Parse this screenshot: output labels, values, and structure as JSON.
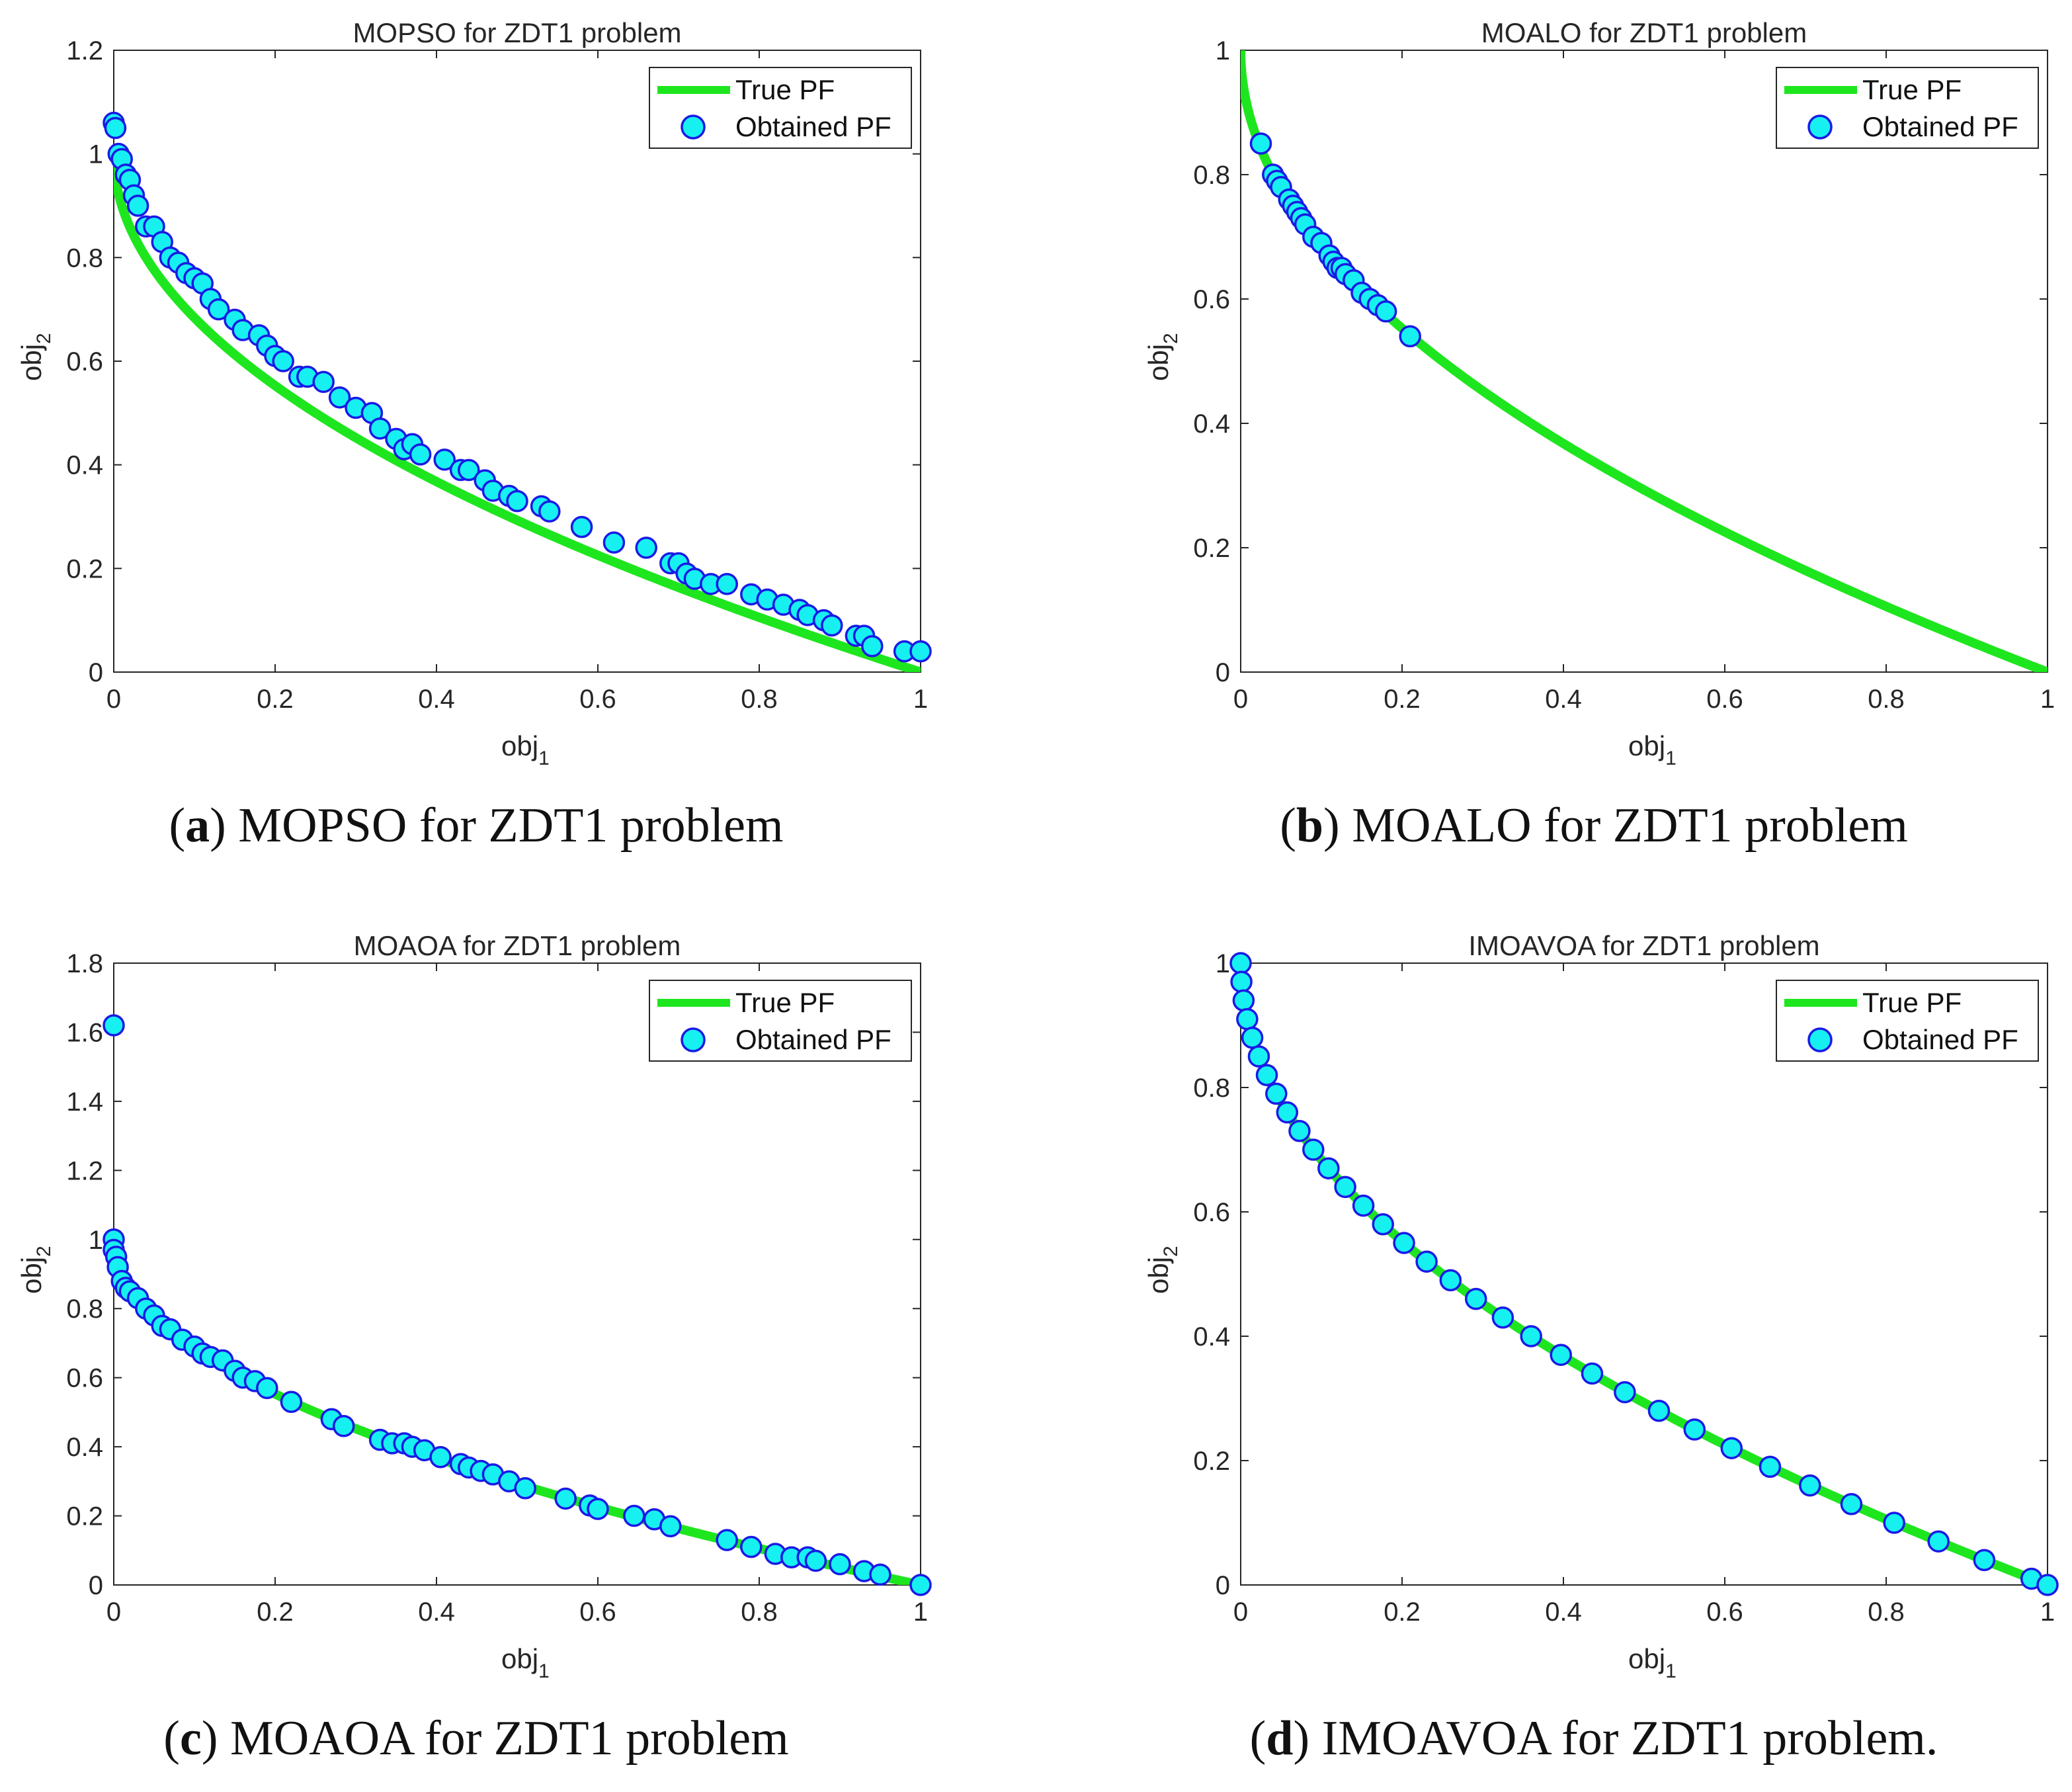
{
  "chart_data": [
    {
      "type": "scatter",
      "panel": "a",
      "title": "MOPSO for ZDT1 problem",
      "caption_label": "a",
      "caption_text": "MOPSO for ZDT1 problem",
      "xlabel": "obj",
      "xlabel_sub": "1",
      "ylabel": "obj",
      "ylabel_sub": "2",
      "xlim": [
        0,
        1
      ],
      "ylim": [
        0,
        1.2
      ],
      "xticks": [
        "0",
        "0.2",
        "0.4",
        "0.6",
        "0.8",
        "1"
      ],
      "yticks": [
        "0",
        "0.2",
        "0.4",
        "0.6",
        "0.8",
        "1",
        "1.2"
      ],
      "legend": {
        "line_label": "True PF",
        "marker_label": "Obtained PF",
        "position": "top-right"
      },
      "true_pf": "f2 = 1 - sqrt(f1)",
      "true_pf_range": [
        0,
        1
      ],
      "series": [
        {
          "name": "Obtained PF",
          "x": [
            0.0,
            0.002,
            0.006,
            0.01,
            0.015,
            0.02,
            0.025,
            0.03,
            0.04,
            0.05,
            0.06,
            0.07,
            0.08,
            0.09,
            0.1,
            0.11,
            0.12,
            0.13,
            0.15,
            0.16,
            0.18,
            0.19,
            0.2,
            0.21,
            0.23,
            0.24,
            0.26,
            0.28,
            0.3,
            0.32,
            0.33,
            0.35,
            0.36,
            0.37,
            0.38,
            0.41,
            0.43,
            0.44,
            0.46,
            0.47,
            0.49,
            0.5,
            0.53,
            0.54,
            0.58,
            0.62,
            0.66,
            0.69,
            0.7,
            0.71,
            0.72,
            0.74,
            0.76,
            0.79,
            0.81,
            0.83,
            0.85,
            0.86,
            0.88,
            0.89,
            0.92,
            0.93,
            0.94,
            0.98,
            1.0
          ],
          "y": [
            1.06,
            1.05,
            1.0,
            0.99,
            0.96,
            0.95,
            0.92,
            0.9,
            0.86,
            0.86,
            0.83,
            0.8,
            0.79,
            0.77,
            0.76,
            0.75,
            0.72,
            0.7,
            0.68,
            0.66,
            0.65,
            0.63,
            0.61,
            0.6,
            0.57,
            0.57,
            0.56,
            0.53,
            0.51,
            0.5,
            0.47,
            0.45,
            0.43,
            0.44,
            0.42,
            0.41,
            0.39,
            0.39,
            0.37,
            0.35,
            0.34,
            0.33,
            0.32,
            0.31,
            0.28,
            0.25,
            0.24,
            0.21,
            0.21,
            0.19,
            0.18,
            0.17,
            0.17,
            0.15,
            0.14,
            0.13,
            0.12,
            0.11,
            0.1,
            0.09,
            0.07,
            0.07,
            0.05,
            0.04,
            0.04
          ]
        }
      ]
    },
    {
      "type": "scatter",
      "panel": "b",
      "title": "MOALO for ZDT1 problem",
      "caption_label": "b",
      "caption_text": "MOALO for ZDT1 problem",
      "xlabel": "obj",
      "xlabel_sub": "1",
      "ylabel": "obj",
      "ylabel_sub": "2",
      "xlim": [
        0,
        1
      ],
      "ylim": [
        0,
        1
      ],
      "xticks": [
        "0",
        "0.2",
        "0.4",
        "0.6",
        "0.8",
        "1"
      ],
      "yticks": [
        "0",
        "0.2",
        "0.4",
        "0.6",
        "0.8",
        "1"
      ],
      "legend": {
        "line_label": "True PF",
        "marker_label": "Obtained PF",
        "position": "top-right"
      },
      "true_pf": "f2 = 1 - sqrt(f1)",
      "true_pf_range": [
        0,
        1
      ],
      "series": [
        {
          "name": "Obtained PF",
          "x": [
            0.025,
            0.04,
            0.045,
            0.05,
            0.06,
            0.065,
            0.07,
            0.075,
            0.08,
            0.09,
            0.1,
            0.11,
            0.115,
            0.12,
            0.125,
            0.13,
            0.14,
            0.15,
            0.16,
            0.17,
            0.18,
            0.21
          ],
          "y": [
            0.85,
            0.8,
            0.79,
            0.78,
            0.76,
            0.75,
            0.74,
            0.73,
            0.72,
            0.7,
            0.69,
            0.67,
            0.66,
            0.65,
            0.65,
            0.64,
            0.63,
            0.61,
            0.6,
            0.59,
            0.58,
            0.54
          ]
        }
      ]
    },
    {
      "type": "scatter",
      "panel": "c",
      "title": "MOAOA for ZDT1 problem",
      "caption_label": "c",
      "caption_text": "MOAOA for ZDT1 problem",
      "xlabel": "obj",
      "xlabel_sub": "1",
      "ylabel": "obj",
      "ylabel_sub": "2",
      "xlim": [
        0,
        1
      ],
      "ylim": [
        0,
        1.8
      ],
      "xticks": [
        "0",
        "0.2",
        "0.4",
        "0.6",
        "0.8",
        "1"
      ],
      "yticks": [
        "0",
        "0.2",
        "0.4",
        "0.6",
        "0.8",
        "1",
        "1.2",
        "1.4",
        "1.6",
        "1.8"
      ],
      "legend": {
        "line_label": "True PF",
        "marker_label": "Obtained PF",
        "position": "top-right"
      },
      "true_pf": "f2 = 1 - sqrt(f1)",
      "true_pf_range": [
        0,
        1
      ],
      "series": [
        {
          "name": "Obtained PF",
          "x": [
            0.0,
            0.0,
            0.0,
            0.003,
            0.005,
            0.01,
            0.015,
            0.02,
            0.03,
            0.04,
            0.05,
            0.06,
            0.07,
            0.085,
            0.1,
            0.11,
            0.12,
            0.135,
            0.15,
            0.16,
            0.175,
            0.19,
            0.22,
            0.27,
            0.285,
            0.33,
            0.345,
            0.36,
            0.37,
            0.385,
            0.405,
            0.43,
            0.44,
            0.455,
            0.47,
            0.49,
            0.51,
            0.56,
            0.59,
            0.6,
            0.645,
            0.67,
            0.69,
            0.76,
            0.79,
            0.82,
            0.84,
            0.86,
            0.87,
            0.9,
            0.93,
            0.95,
            1.0
          ],
          "y": [
            1.62,
            1.0,
            0.97,
            0.95,
            0.92,
            0.88,
            0.86,
            0.85,
            0.83,
            0.8,
            0.78,
            0.75,
            0.74,
            0.71,
            0.69,
            0.67,
            0.66,
            0.65,
            0.62,
            0.6,
            0.59,
            0.57,
            0.53,
            0.48,
            0.46,
            0.42,
            0.41,
            0.41,
            0.4,
            0.39,
            0.37,
            0.35,
            0.34,
            0.33,
            0.32,
            0.3,
            0.28,
            0.25,
            0.23,
            0.22,
            0.2,
            0.19,
            0.17,
            0.13,
            0.11,
            0.09,
            0.08,
            0.08,
            0.07,
            0.06,
            0.04,
            0.03,
            0.0
          ]
        }
      ]
    },
    {
      "type": "scatter",
      "panel": "d",
      "title": "IMOAVOA for ZDT1 problem",
      "caption_label": "d",
      "caption_text": "IMOAVOA for ZDT1 problem.",
      "xlabel": "obj",
      "xlabel_sub": "1",
      "ylabel": "obj",
      "ylabel_sub": "2",
      "xlim": [
        0,
        1
      ],
      "ylim": [
        0,
        1
      ],
      "xticks": [
        "0",
        "0.2",
        "0.4",
        "0.6",
        "0.8",
        "1"
      ],
      "yticks": [
        "0",
        "0.2",
        "0.4",
        "0.6",
        "0.8",
        "1"
      ],
      "legend": {
        "line_label": "True PF",
        "marker_label": "Obtained PF",
        "position": "top-right"
      },
      "true_pf": "f2 = 1 - sqrt(f1)",
      "true_pf_range": [
        0,
        1
      ],
      "series": [
        {
          "name": "Obtained PF",
          "sampling": "dense points along true front",
          "x": [
            0.0,
            0.0009,
            0.0036,
            0.0081,
            0.0144,
            0.0225,
            0.0324,
            0.0441,
            0.0576,
            0.0729,
            0.09,
            0.1089,
            0.1296,
            0.1521,
            0.1764,
            0.2025,
            0.2304,
            0.2601,
            0.2916,
            0.3249,
            0.36,
            0.3969,
            0.4356,
            0.4761,
            0.5184,
            0.5625,
            0.6084,
            0.6561,
            0.7056,
            0.7569,
            0.81,
            0.8649,
            0.9216,
            0.9801,
            1.0
          ],
          "y": [
            1.0,
            0.97,
            0.94,
            0.91,
            0.88,
            0.85,
            0.82,
            0.79,
            0.76,
            0.73,
            0.7,
            0.67,
            0.64,
            0.61,
            0.58,
            0.55,
            0.52,
            0.49,
            0.46,
            0.43,
            0.4,
            0.37,
            0.34,
            0.31,
            0.28,
            0.25,
            0.22,
            0.19,
            0.16,
            0.13,
            0.1,
            0.07,
            0.04,
            0.01,
            0.0
          ]
        }
      ]
    }
  ]
}
